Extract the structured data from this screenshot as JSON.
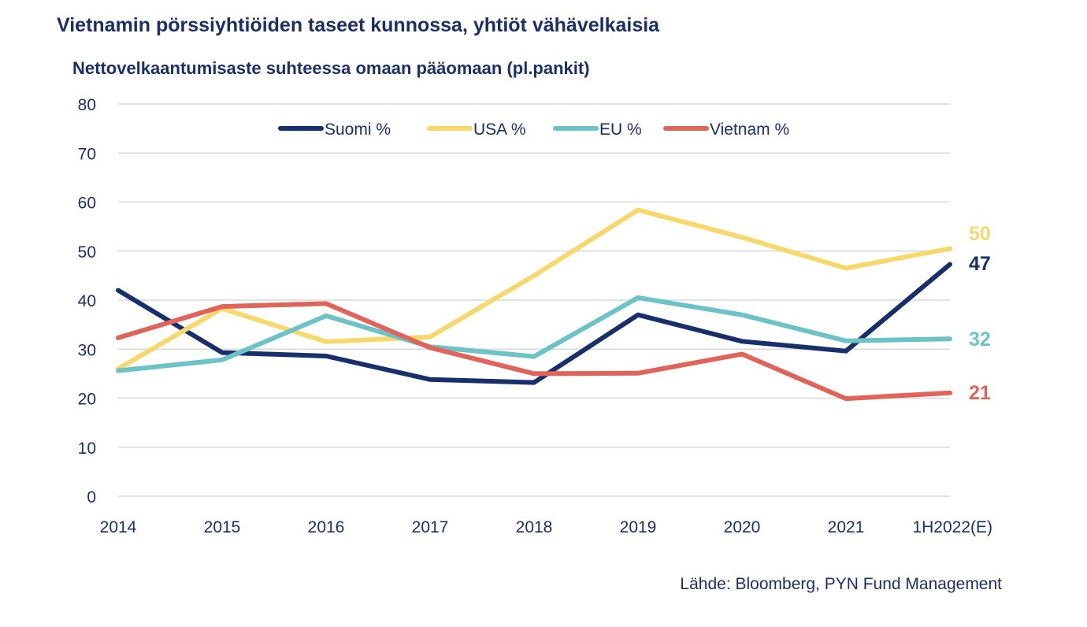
{
  "title": "Vietnamin pörssiyhtiöiden taseet kunnossa, yhtiöt vähävelkaisia",
  "source": "Lähde: Bloomberg, PYN Fund Management",
  "chart_data": {
    "type": "line",
    "title": "Nettovelkaantumisaste suhteessa omaan pääomaan (pl.pankit)",
    "xlabel": "",
    "ylabel": "",
    "ylim": [
      0,
      80
    ],
    "yticks": [
      0,
      10,
      20,
      30,
      40,
      50,
      60,
      70,
      80
    ],
    "grid": true,
    "legend_position": "top-center",
    "categories": [
      "2014",
      "2015",
      "2016",
      "2017",
      "2018",
      "2019",
      "2020",
      "2021",
      "1H2022(E)"
    ],
    "series": [
      {
        "name": "Suomi %",
        "color": "#17306b",
        "values": [
          42,
          29.3,
          28.6,
          23.8,
          23.2,
          37,
          31.6,
          29.6,
          47.3
        ],
        "end_label": "47"
      },
      {
        "name": "USA %",
        "color": "#f7d96b",
        "values": [
          26,
          38.3,
          31.5,
          32.5,
          45,
          58.4,
          52.8,
          46.5,
          50.5
        ],
        "end_label": "50"
      },
      {
        "name": "EU %",
        "color": "#6cc3c6",
        "values": [
          25.6,
          27.8,
          36.8,
          30.5,
          28.5,
          40.5,
          37,
          31.7,
          32.1
        ],
        "end_label": "32"
      },
      {
        "name": "Vietnam %",
        "color": "#e0645a",
        "values": [
          32.3,
          38.7,
          39.3,
          30.3,
          25,
          25.1,
          29,
          19.9,
          21.1
        ],
        "end_label": "21"
      }
    ]
  }
}
